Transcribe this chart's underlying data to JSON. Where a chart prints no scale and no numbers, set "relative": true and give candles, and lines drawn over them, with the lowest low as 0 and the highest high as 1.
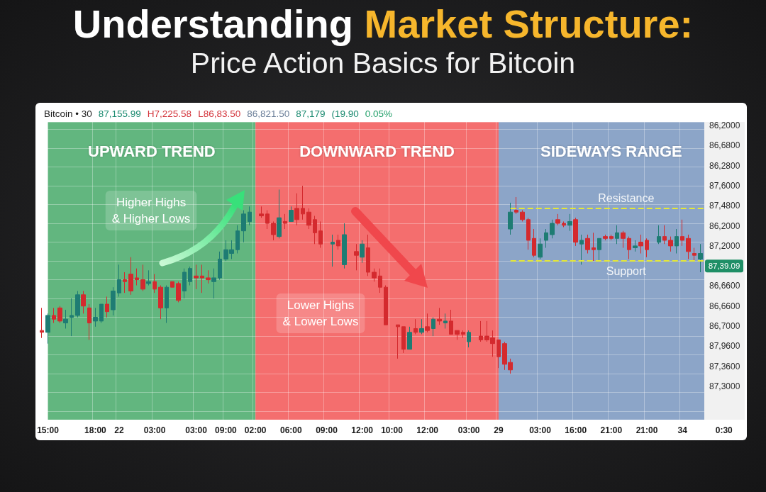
{
  "chart_data": {
    "type": "candlestick",
    "title": "Understanding Market Structure:",
    "subtitle": "Price Action Basics for Bitcoin",
    "relative": true,
    "categories": [
      null,
      "15:00",
      null,
      null,
      null,
      null,
      null,
      null,
      null,
      "18:00",
      null,
      null,
      null,
      "22",
      null,
      null,
      null,
      null,
      null,
      "03:00",
      null,
      null,
      null,
      null,
      null,
      null,
      "03:00",
      null,
      null,
      null,
      null,
      "09:00",
      null,
      null,
      null,
      null,
      "02:00",
      null,
      null,
      null,
      null,
      null,
      "06:00",
      null,
      null,
      null,
      null,
      null,
      "09:00",
      null,
      null,
      null,
      null,
      null,
      "12:00",
      null,
      null,
      null,
      null,
      "10:00",
      null,
      null,
      null,
      null,
      null,
      "12:00",
      null,
      null,
      null,
      null,
      null,
      null,
      "03:00",
      null,
      null,
      null,
      null,
      "29",
      null,
      null,
      null,
      null,
      null,
      null,
      "03:00",
      null,
      null,
      null,
      null,
      null,
      "16:00",
      null,
      null,
      null,
      null,
      null,
      "21:00",
      null,
      null,
      null,
      null,
      null,
      "21:00",
      null,
      null,
      null,
      null,
      null,
      "34",
      null,
      null,
      null,
      null,
      null,
      null,
      "0:30",
      null,
      null,
      null
    ],
    "grid": true,
    "bands": [
      {
        "axis": "x",
        "from": "15:00",
        "to": "02:00",
        "label": "UPWARD TREND",
        "color": "#62b67f"
      },
      {
        "axis": "x",
        "from": "02:00",
        "to": "29",
        "label": "DOWNWARD TREND",
        "color": "#f46e6e"
      },
      {
        "axis": "x",
        "from": "29",
        "to": "0:30",
        "label": "SIDEWAYS RANGE",
        "color": "#8ca5c8"
      }
    ],
    "ref_lines": [
      {
        "axis": "y",
        "value": 0.88,
        "label": "Resistance",
        "color": "#e6e835",
        "line_style": "dashed"
      },
      {
        "axis": "y",
        "value": 0.6,
        "label": "Support",
        "color": "#e6e835",
        "line_style": "dashed"
      }
    ],
    "annotations": [
      "Bitcoin • 30",
      "87,155.99 H7,225.58 L86,83.50 86,821.50 87,179 (19.90 0.05%",
      "86,2000",
      "86,6800",
      "86,2800",
      "87,6000",
      "87,4800",
      "86,2000",
      "87,2000",
      "87,39.09",
      "86,6600",
      "86,6600",
      "86,7000",
      "87,9600",
      "87,3600",
      "87,3000",
      "Higher Highs\n& Higher Lows",
      "Lower Highs\n& Lower Lows"
    ],
    "series": [
      {
        "ohlc": [
          [
            0.23,
            0.35,
            0.19,
            0.22
          ],
          [
            0.22,
            0.32,
            0.16,
            0.31
          ],
          [
            0.31,
            0.35,
            0.27,
            0.29
          ],
          [
            0.35,
            0.36,
            0.27,
            0.28
          ],
          [
            0.27,
            0.34,
            0.24,
            0.29
          ],
          [
            0.3,
            0.4,
            0.2,
            0.31
          ],
          [
            0.31,
            0.44,
            0.3,
            0.42
          ],
          [
            0.42,
            0.44,
            0.32,
            0.36
          ],
          [
            0.35,
            0.37,
            0.18,
            0.27
          ],
          [
            0.28,
            0.35,
            0.25,
            0.3
          ],
          [
            0.28,
            0.37,
            0.27,
            0.37
          ],
          [
            0.37,
            0.41,
            0.3,
            0.33
          ],
          [
            0.34,
            0.46,
            0.31,
            0.44
          ],
          [
            0.43,
            0.58,
            0.41,
            0.5
          ],
          [
            0.5,
            0.54,
            0.43,
            0.49
          ],
          [
            0.53,
            0.62,
            0.42,
            0.44
          ],
          [
            0.51,
            0.56,
            0.47,
            0.5
          ],
          [
            0.5,
            0.58,
            0.44,
            0.45
          ],
          [
            0.48,
            0.55,
            0.47,
            0.49
          ],
          [
            0.49,
            0.53,
            0.43,
            0.45
          ],
          [
            0.46,
            0.47,
            0.29,
            0.35
          ],
          [
            0.35,
            0.47,
            0.27,
            0.46
          ],
          [
            0.49,
            0.49,
            0.46,
            0.46
          ],
          [
            0.48,
            0.49,
            0.38,
            0.39
          ],
          [
            0.44,
            0.56,
            0.4,
            0.54
          ],
          [
            0.49,
            0.57,
            0.47,
            0.56
          ],
          [
            0.52,
            0.58,
            0.45,
            0.51
          ],
          [
            0.52,
            0.58,
            0.43,
            0.51
          ],
          [
            0.51,
            0.55,
            0.48,
            0.5
          ],
          [
            0.49,
            0.56,
            0.4,
            0.51
          ],
          [
            0.51,
            0.65,
            0.5,
            0.61
          ],
          [
            0.61,
            0.71,
            0.6,
            0.66
          ],
          [
            0.64,
            0.71,
            0.61,
            0.66
          ],
          [
            0.66,
            0.79,
            0.64,
            0.76
          ],
          [
            0.76,
            0.87,
            0.7,
            0.85
          ],
          [
            0.81,
            0.89,
            0.79,
            0.86
          ],
          null,
          null,
          null,
          null,
          null,
          null,
          null,
          null,
          null,
          null,
          null,
          null,
          null,
          null,
          null,
          null,
          null,
          null,
          null,
          null,
          null,
          null,
          null,
          null,
          null,
          null,
          null,
          null,
          null,
          null,
          null,
          null,
          null,
          null,
          null,
          null,
          null,
          null,
          null,
          null,
          null,
          null,
          null,
          null,
          null,
          null,
          null,
          null,
          null,
          null,
          null,
          null,
          null,
          null,
          null,
          null,
          null,
          null,
          null,
          null,
          null,
          null,
          null,
          null,
          null,
          null,
          null,
          null,
          null,
          null,
          null,
          null,
          null,
          null,
          null,
          null,
          null,
          null,
          null,
          null,
          null,
          null,
          null
        ],
        "colors": [
          "#d42a2e",
          "#1e7c73",
          "#d42a2e",
          "#d42a2e",
          "#1e7c73",
          "#1e7c73",
          "#1e7c73",
          "#d42a2e",
          "#d42a2e",
          "#1e7c73",
          "#1e7c73",
          "#d42a2e",
          "#1e7c73",
          "#1e7c73",
          "#d42a2e",
          "#d42a2e",
          "#d42a2e",
          "#d42a2e",
          "#1e7c73",
          "#d42a2e",
          "#d42a2e",
          "#1e7c73",
          "#d42a2e",
          "#d42a2e",
          "#1e7c73",
          "#1e7c73",
          "#d42a2e",
          "#d42a2e",
          "#d42a2e",
          "#1e7c73",
          "#1e7c73",
          "#1e7c73",
          "#1e7c73",
          "#1e7c73",
          "#1e7c73",
          "#1e7c73",
          null,
          null,
          null,
          null,
          null,
          null,
          null,
          null,
          null,
          null,
          null,
          null,
          null,
          null,
          null,
          null,
          null,
          null,
          null,
          null,
          null,
          null,
          null,
          null,
          null,
          null,
          null,
          null,
          null,
          null,
          null,
          null,
          null,
          null,
          null,
          null,
          null,
          null,
          null,
          null,
          null,
          null,
          null,
          null,
          null,
          null,
          null,
          null,
          null,
          null,
          null,
          null,
          null,
          null,
          null,
          null,
          null,
          null,
          null,
          null,
          null,
          null,
          null,
          null,
          null,
          null,
          null,
          null,
          null,
          null,
          null,
          null,
          null,
          null,
          null,
          null,
          null,
          null,
          null,
          null,
          null,
          null,
          null
        ]
      },
      {
        "ohlc": [
          null,
          null,
          null,
          null,
          null,
          null,
          null,
          null,
          null,
          null,
          null,
          null,
          null,
          null,
          null,
          null,
          null,
          null,
          null,
          null,
          null,
          null,
          null,
          null,
          null,
          null,
          null,
          null,
          null,
          null,
          null,
          null,
          null,
          null,
          null,
          null,
          null,
          [
            0.85,
            0.89,
            0.83,
            0.84
          ],
          [
            0.85,
            0.87,
            0.77,
            0.8
          ],
          [
            0.8,
            0.81,
            0.71,
            0.74
          ],
          [
            0.73,
            0.98,
            0.72,
            0.83
          ],
          [
            0.81,
            0.85,
            0.77,
            0.8
          ],
          [
            0.81,
            0.89,
            0.81,
            0.87
          ],
          [
            0.88,
            0.96,
            0.79,
            0.82
          ],
          [
            0.88,
            1.0,
            0.82,
            0.85
          ],
          [
            0.86,
            0.88,
            0.77,
            0.79
          ],
          [
            0.82,
            0.84,
            0.69,
            0.75
          ],
          [
            0.76,
            0.81,
            0.67,
            0.69
          ],
          null,
          [
            0.69,
            0.74,
            0.57,
            0.7
          ],
          [
            0.71,
            0.74,
            0.66,
            0.68
          ],
          [
            0.58,
            0.8,
            0.56,
            0.74
          ],
          null,
          [
            0.65,
            0.69,
            0.55,
            0.63
          ],
          [
            0.62,
            0.71,
            0.59,
            0.69
          ],
          [
            0.67,
            0.74,
            0.52,
            0.54
          ],
          [
            0.54,
            0.56,
            0.49,
            0.51
          ],
          [
            0.52,
            0.56,
            0.43,
            0.46
          ],
          [
            0.46,
            0.47,
            0.26,
            0.26
          ],
          null,
          [
            0.26,
            0.26,
            0.08,
            0.25
          ],
          [
            0.25,
            0.25,
            0.11,
            0.13
          ],
          [
            0.13,
            0.25,
            0.13,
            0.22
          ],
          [
            0.24,
            0.29,
            0.21,
            0.22
          ],
          [
            0.22,
            0.29,
            0.21,
            0.24
          ],
          [
            0.25,
            0.32,
            0.22,
            0.23
          ],
          [
            0.24,
            0.3,
            0.2,
            0.29
          ],
          [
            0.29,
            0.35,
            0.26,
            0.28
          ],
          [
            0.27,
            0.32,
            0.24,
            0.28
          ],
          [
            0.28,
            0.34,
            0.21,
            0.21
          ],
          [
            0.23,
            0.23,
            0.18,
            0.21
          ],
          [
            0.22,
            0.23,
            0.19,
            0.21
          ],
          [
            0.17,
            0.23,
            0.14,
            0.22
          ],
          null,
          [
            0.2,
            0.28,
            0.17,
            0.18
          ],
          [
            0.2,
            0.28,
            0.17,
            0.18
          ],
          [
            0.19,
            0.23,
            0.09,
            0.16
          ],
          [
            0.18,
            0.18,
            0.03,
            0.09
          ],
          [
            0.16,
            0.17,
            0.02,
            0.05
          ],
          [
            0.06,
            0.08,
            0.0,
            0.02
          ],
          null,
          null,
          null,
          null,
          null,
          null,
          null,
          null,
          null,
          null,
          null,
          null,
          null,
          null,
          null,
          null,
          null,
          null,
          null,
          null,
          null,
          null,
          null,
          null,
          null,
          null,
          null,
          null,
          null,
          null,
          null,
          null,
          null,
          null,
          null,
          null,
          null,
          null,
          null
        ],
        "colors": [
          null,
          null,
          null,
          null,
          null,
          null,
          null,
          null,
          null,
          null,
          null,
          null,
          null,
          null,
          null,
          null,
          null,
          null,
          null,
          null,
          null,
          null,
          null,
          null,
          null,
          null,
          null,
          null,
          null,
          null,
          null,
          null,
          null,
          null,
          null,
          null,
          null,
          "#d42a2e",
          "#d42a2e",
          "#d42a2e",
          "#1e7c73",
          "#d42a2e",
          "#1e7c73",
          "#d42a2e",
          "#d42a2e",
          "#d42a2e",
          "#d42a2e",
          "#d42a2e",
          null,
          "#1e7c73",
          "#d42a2e",
          "#1e7c73",
          null,
          "#d42a2e",
          "#1e7c73",
          "#d42a2e",
          "#d42a2e",
          "#d42a2e",
          "#d42a2e",
          null,
          "#d42a2e",
          "#d42a2e",
          "#1e7c73",
          "#d42a2e",
          "#1e7c73",
          "#d42a2e",
          "#1e7c73",
          "#d42a2e",
          "#1e7c73",
          "#d42a2e",
          "#d42a2e",
          "#d42a2e",
          "#1e7c73",
          null,
          "#d42a2e",
          "#d42a2e",
          "#d42a2e",
          "#d42a2e",
          "#d42a2e",
          "#d42a2e",
          null,
          null,
          null,
          null,
          null,
          null,
          null,
          null,
          null,
          null,
          null,
          null,
          null,
          null,
          null,
          null,
          null,
          null,
          null,
          null,
          null,
          null,
          null,
          null,
          null,
          null,
          null,
          null,
          null,
          null,
          null,
          null,
          null,
          null,
          null,
          null,
          null,
          null,
          null
        ]
      },
      {
        "ohlc": [
          null,
          null,
          null,
          null,
          null,
          null,
          null,
          null,
          null,
          null,
          null,
          null,
          null,
          null,
          null,
          null,
          null,
          null,
          null,
          null,
          null,
          null,
          null,
          null,
          null,
          null,
          null,
          null,
          null,
          null,
          null,
          null,
          null,
          null,
          null,
          null,
          null,
          null,
          null,
          null,
          null,
          null,
          null,
          null,
          null,
          null,
          null,
          null,
          null,
          null,
          null,
          null,
          null,
          null,
          null,
          null,
          null,
          null,
          null,
          null,
          null,
          null,
          null,
          null,
          null,
          null,
          null,
          null,
          null,
          null,
          null,
          null,
          null,
          null,
          null,
          null,
          null,
          null,
          null,
          [
            0.77,
            0.91,
            0.74,
            0.86
          ],
          [
            0.87,
            0.94,
            0.85,
            0.86
          ],
          [
            0.86,
            0.87,
            0.81,
            0.82
          ],
          [
            0.82,
            0.83,
            0.66,
            0.71
          ],
          [
            0.72,
            0.77,
            0.62,
            0.63
          ],
          [
            0.62,
            0.72,
            0.61,
            0.69
          ],
          [
            0.71,
            0.77,
            0.67,
            0.75
          ],
          [
            0.74,
            0.82,
            0.72,
            0.8
          ],
          [
            0.82,
            0.85,
            0.79,
            0.8
          ],
          [
            0.8,
            0.81,
            0.78,
            0.79
          ],
          [
            0.79,
            0.85,
            0.76,
            0.81
          ],
          [
            0.82,
            0.83,
            0.68,
            0.7
          ],
          [
            0.69,
            0.74,
            0.58,
            0.71
          ],
          [
            0.72,
            0.74,
            0.64,
            0.66
          ],
          [
            0.67,
            0.75,
            0.6,
            0.66
          ],
          [
            0.66,
            0.72,
            0.6,
            0.72
          ],
          [
            0.73,
            0.74,
            0.71,
            0.72
          ],
          [
            0.73,
            0.74,
            0.71,
            0.72
          ],
          [
            0.72,
            0.79,
            0.69,
            0.75
          ],
          [
            0.75,
            0.76,
            0.67,
            0.72
          ],
          [
            0.72,
            0.73,
            0.61,
            0.66
          ],
          [
            0.67,
            0.71,
            0.65,
            0.68
          ],
          [
            0.7,
            0.74,
            0.64,
            0.68
          ],
          [
            0.71,
            0.72,
            0.62,
            0.66
          ],
          null,
          [
            0.7,
            0.79,
            0.69,
            0.73
          ],
          [
            0.73,
            0.79,
            0.69,
            0.71
          ],
          [
            0.71,
            0.73,
            0.65,
            0.68
          ],
          [
            0.68,
            0.77,
            0.64,
            0.73
          ],
          [
            0.73,
            0.82,
            0.68,
            0.71
          ],
          [
            0.72,
            0.74,
            0.61,
            0.65
          ],
          [
            0.64,
            0.67,
            0.6,
            0.63
          ],
          [
            0.61,
            0.69,
            0.54,
            0.64
          ],
          null,
          null,
          null,
          null,
          null,
          null,
          null
        ],
        "colors": [
          null,
          null,
          null,
          null,
          null,
          null,
          null,
          null,
          null,
          null,
          null,
          null,
          null,
          null,
          null,
          null,
          null,
          null,
          null,
          null,
          null,
          null,
          null,
          null,
          null,
          null,
          null,
          null,
          null,
          null,
          null,
          null,
          null,
          null,
          null,
          null,
          null,
          null,
          null,
          null,
          null,
          null,
          null,
          null,
          null,
          null,
          null,
          null,
          null,
          null,
          null,
          null,
          null,
          null,
          null,
          null,
          null,
          null,
          null,
          null,
          null,
          null,
          null,
          null,
          null,
          null,
          null,
          null,
          null,
          null,
          null,
          null,
          null,
          null,
          null,
          null,
          null,
          null,
          null,
          "#1e7c73",
          "#d42a2e",
          "#d42a2e",
          "#d42a2e",
          "#d42a2e",
          "#1e7c73",
          "#1e7c73",
          "#1e7c73",
          "#d42a2e",
          "#d42a2e",
          "#1e7c73",
          "#d42a2e",
          "#1e7c73",
          "#d42a2e",
          "#d42a2e",
          "#1e7c73",
          "#d42a2e",
          "#d42a2e",
          "#1e7c73",
          "#d42a2e",
          "#d42a2e",
          "#1e7c73",
          "#d42a2e",
          "#d42a2e",
          null,
          "#1e7c73",
          "#d42a2e",
          "#d42a2e",
          "#1e7c73",
          "#d42a2e",
          "#d42a2e",
          "#d42a2e",
          "#1e7c73",
          null,
          null,
          null,
          null,
          null,
          null,
          null
        ]
      }
    ]
  }
}
